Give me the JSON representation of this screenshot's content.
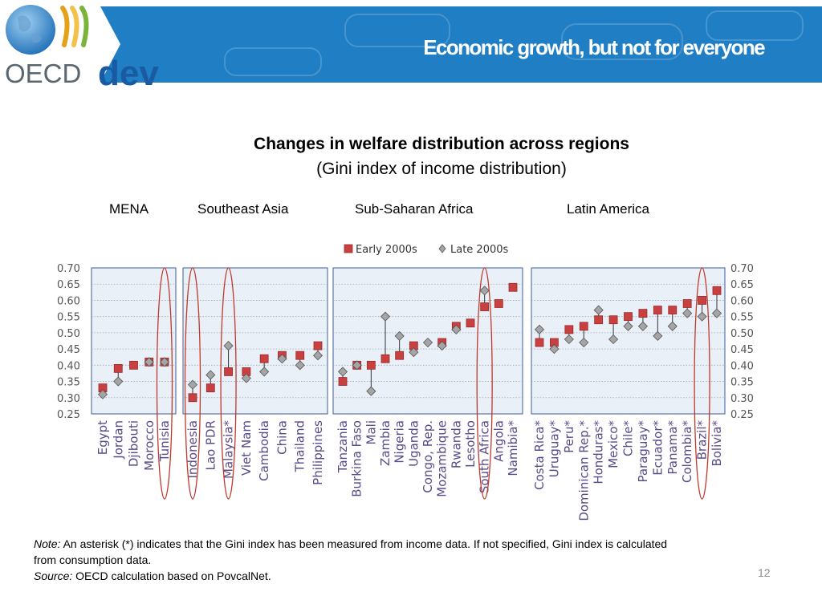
{
  "header": {
    "title": "Economic growth, but not for everyone",
    "logo_text_oecd": "OECD",
    "logo_text_dev": "dev"
  },
  "colors": {
    "banner": "#1f7ec4",
    "early_marker": "#c8403f",
    "late_marker": "#a5a5a5",
    "highlight_oval": "#c0392b",
    "panel_bg": "#eaf0f8",
    "panel_border": "#3b5d96"
  },
  "chart_data": {
    "type": "scatter",
    "title": "Changes in welfare distribution across regions",
    "subtitle": "(Gini index of income distribution)",
    "legend": [
      "Early 2000s",
      "Late 2000s"
    ],
    "ylim": [
      0.25,
      0.7
    ],
    "y_ticks": [
      "0.70",
      "0.65",
      "0.60",
      "0.55",
      "0.50",
      "0.45",
      "0.40",
      "0.35",
      "0.30",
      "0.25"
    ],
    "panels": [
      {
        "region": "MENA",
        "countries": [
          "Egypt",
          "Jordan",
          "Djibouti",
          "Morocco",
          "Tunisia"
        ],
        "early": [
          0.33,
          0.39,
          0.4,
          0.41,
          0.41
        ],
        "late": [
          0.31,
          0.35,
          null,
          0.41,
          0.41
        ],
        "highlighted": [
          "Tunisia"
        ]
      },
      {
        "region": "Southeast Asia",
        "countries": [
          "Indonesia",
          "Lao PDR",
          "Malaysia*",
          "Viet Nam",
          "Cambodia",
          "China",
          "Thailand",
          "Philippines"
        ],
        "early": [
          0.3,
          0.33,
          0.38,
          0.38,
          0.42,
          0.43,
          0.43,
          0.46
        ],
        "late": [
          0.34,
          0.37,
          0.46,
          0.36,
          0.38,
          0.42,
          0.4,
          0.43
        ],
        "highlighted": [
          "Indonesia",
          "Malaysia*"
        ]
      },
      {
        "region": "Sub-Saharan Africa",
        "countries": [
          "Tanzania",
          "Burkina Faso",
          "Mali",
          "Zambia",
          "Nigeria",
          "Uganda",
          "Congo, Rep.",
          "Mozambique",
          "Rwanda",
          "Lesotho",
          "South Africa",
          "Angola",
          "Namibia*"
        ],
        "early": [
          0.35,
          0.4,
          0.4,
          0.42,
          0.43,
          0.46,
          null,
          0.47,
          0.52,
          0.53,
          0.58,
          0.59,
          0.64
        ],
        "late": [
          0.38,
          0.4,
          0.32,
          0.55,
          0.49,
          0.44,
          0.47,
          0.46,
          0.51,
          null,
          0.63,
          null,
          null
        ],
        "highlighted": [
          "South Africa"
        ]
      },
      {
        "region": "Latin America",
        "countries": [
          "Costa Rica*",
          "Uruguay*",
          "Peru*",
          "Dominican Rep.*",
          "Honduras*",
          "Mexico*",
          "Chile*",
          "Paraguay*",
          "Ecuador*",
          "Panama*",
          "Colombia*",
          "Brazil*",
          "Bolivia*"
        ],
        "early": [
          0.47,
          0.47,
          0.51,
          0.52,
          0.54,
          0.54,
          0.55,
          0.56,
          0.57,
          0.57,
          0.59,
          0.6,
          0.63
        ],
        "late": [
          0.51,
          0.45,
          0.48,
          0.47,
          0.57,
          0.48,
          0.52,
          0.52,
          0.49,
          0.52,
          0.56,
          0.55,
          0.56
        ],
        "highlighted": [
          "Brazil*"
        ]
      }
    ]
  },
  "note": {
    "note_label": "Note:",
    "note_text": " An asterisk (*) indicates that the Gini index has been measured from income data. If not specified, Gini index is calculated from consumption data.",
    "source_label": "Source:",
    "source_text": " OECD calculation based on PovcalNet."
  },
  "page_number": "12"
}
